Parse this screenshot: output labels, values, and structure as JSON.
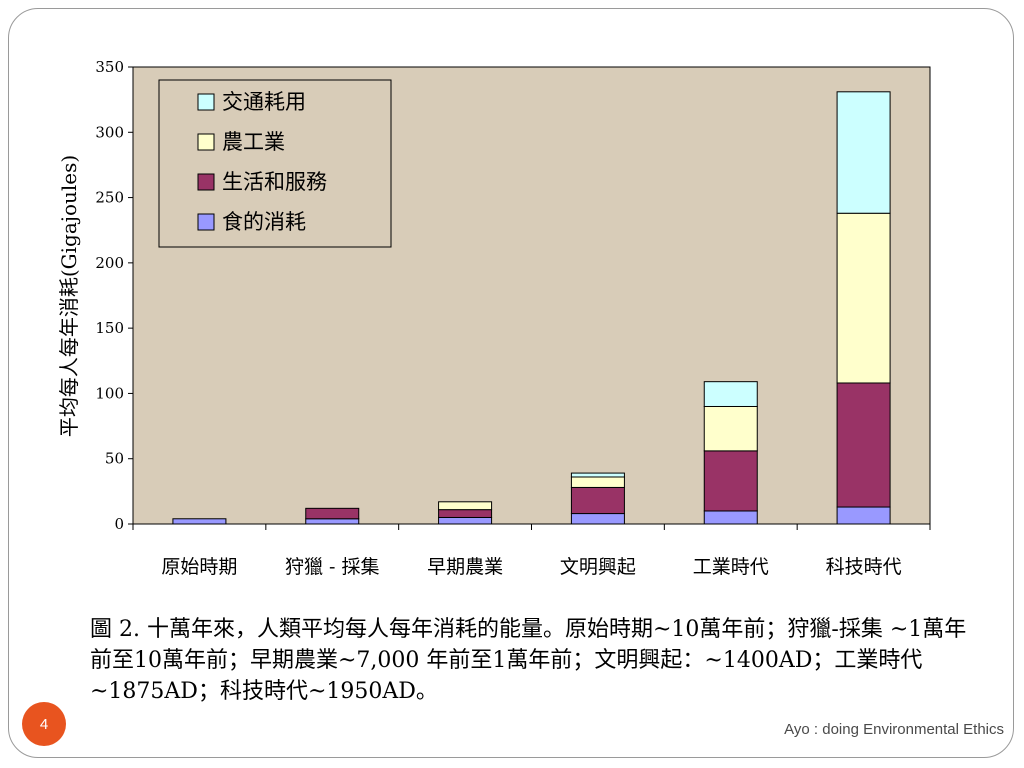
{
  "chart_data": {
    "type": "bar",
    "stacked": true,
    "categories": [
      "原始時期",
      "狩獵 - 採集",
      "早期農業",
      "文明興起",
      "工業時代",
      "科技時代"
    ],
    "ylabel": "平均每人每年消耗(Gigajoules)",
    "xlabel": "",
    "ylim": [
      0,
      350
    ],
    "yticks": [
      0,
      50,
      100,
      150,
      200,
      250,
      300,
      350
    ],
    "grid": false,
    "legend_position": "top-left",
    "plot_background": "#d8ccb8",
    "series": [
      {
        "name": "食的消耗",
        "color": "#9999ff",
        "values": [
          4,
          4,
          5,
          8,
          10,
          13
        ]
      },
      {
        "name": "生活和服務",
        "color": "#993366",
        "values": [
          0,
          8,
          6,
          20,
          46,
          95
        ]
      },
      {
        "name": "農工業",
        "color": "#ffffcc",
        "values": [
          0,
          0,
          6,
          8,
          34,
          130
        ]
      },
      {
        "name": "交通耗用",
        "color": "#ccffff",
        "values": [
          0,
          0,
          0,
          3,
          19,
          93
        ]
      }
    ]
  },
  "caption": "圖 2. 十萬年來，人類平均每人每年消耗的能量。原始時期~10萬年前；狩獵-採集 ~1萬年前至10萬年前；早期農業~7,000 年前至1萬年前；文明興起：~1400AD；工業時代~1875AD；科技時代~1950AD。",
  "page_number": "4",
  "footer": "Ayo : doing Environmental Ethics"
}
